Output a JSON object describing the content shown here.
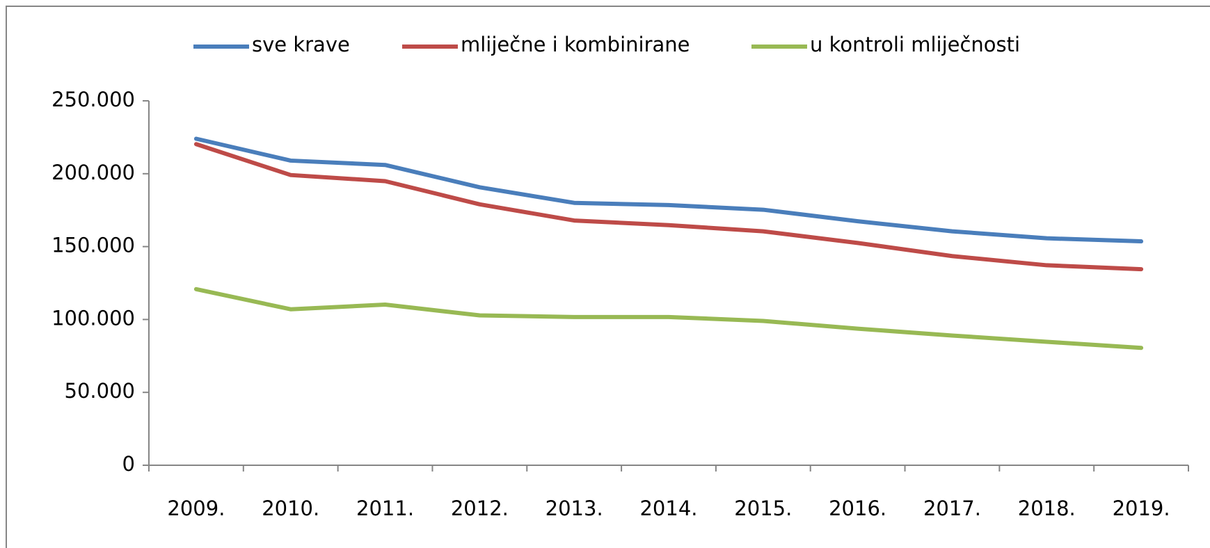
{
  "chart_data": {
    "type": "line",
    "categories": [
      "2009.",
      "2010.",
      "2011.",
      "2012.",
      "2013.",
      "2014.",
      "2015.",
      "2016.",
      "2017.",
      "2018.",
      "2019."
    ],
    "series": [
      {
        "name": "sve krave",
        "color": "#4a7ebb",
        "values": [
          224000,
          209000,
          206000,
          190700,
          180000,
          178500,
          175300,
          167400,
          160500,
          155700,
          153600
        ]
      },
      {
        "name": "mliječne i kombinirane",
        "color": "#be4b48",
        "values": [
          220300,
          199100,
          194900,
          179000,
          167900,
          164700,
          160500,
          152500,
          143500,
          137200,
          134500
        ]
      },
      {
        "name": "u kontroli mliječnosti",
        "color": "#98b954",
        "values": [
          120800,
          107000,
          110200,
          102800,
          101700,
          101700,
          99000,
          93700,
          89000,
          84700,
          80500
        ]
      }
    ],
    "ylim": [
      0,
      250000
    ],
    "yticks": [
      0,
      {
        "value": 50000,
        "label": "50.000"
      },
      {
        "value": 100000,
        "label": "100.000"
      },
      {
        "value": 150000,
        "label": "150.000"
      },
      {
        "value": 200000,
        "label": "200.000"
      },
      {
        "value": 250000,
        "label": "250.000"
      }
    ],
    "grid": false,
    "legend": "top"
  }
}
